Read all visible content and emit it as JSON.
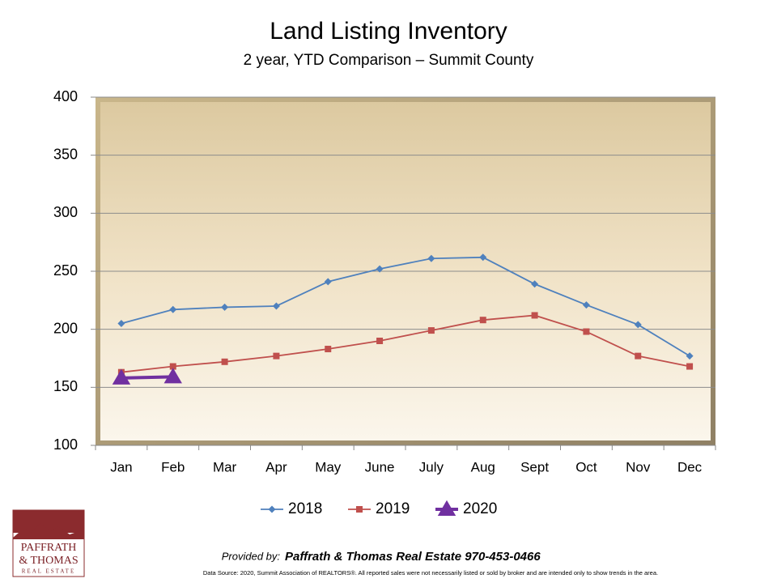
{
  "chart_data": {
    "type": "line",
    "title": "Land Listing Inventory",
    "subtitle": "2 year, YTD Comparison – Summit County",
    "categories": [
      "Jan",
      "Feb",
      "Mar",
      "Apr",
      "May",
      "June",
      "July",
      "Aug",
      "Sept",
      "Oct",
      "Nov",
      "Dec"
    ],
    "series": [
      {
        "name": "2018",
        "color": "#4f81bd",
        "marker": "diamond",
        "values": [
          205,
          217,
          219,
          220,
          241,
          252,
          261,
          262,
          239,
          221,
          204,
          177
        ]
      },
      {
        "name": "2019",
        "color": "#c0504d",
        "marker": "square",
        "values": [
          163,
          168,
          172,
          177,
          183,
          190,
          199,
          208,
          212,
          198,
          177,
          168
        ]
      },
      {
        "name": "2020",
        "color": "#7030a0",
        "marker": "triangle",
        "values": [
          158,
          159,
          null,
          null,
          null,
          null,
          null,
          null,
          null,
          null,
          null,
          null
        ]
      }
    ],
    "ylim": [
      100,
      400
    ],
    "yticks": [
      100,
      150,
      200,
      250,
      300,
      350,
      400
    ],
    "grid": true,
    "legend": "bottom"
  },
  "footer": {
    "provided_by": "Provided by:",
    "company": "Paffrath & Thomas Real Estate  970-453-0466",
    "source": "Data Source: 2020, Summit Association of REALTORS®. All reported sales were not necessarily listed or sold by broker and are intended only to show trends in the area."
  },
  "logo": {
    "line1": "PAFFRATH",
    "line2": "& THOMAS",
    "line3": "REAL ESTATE"
  }
}
